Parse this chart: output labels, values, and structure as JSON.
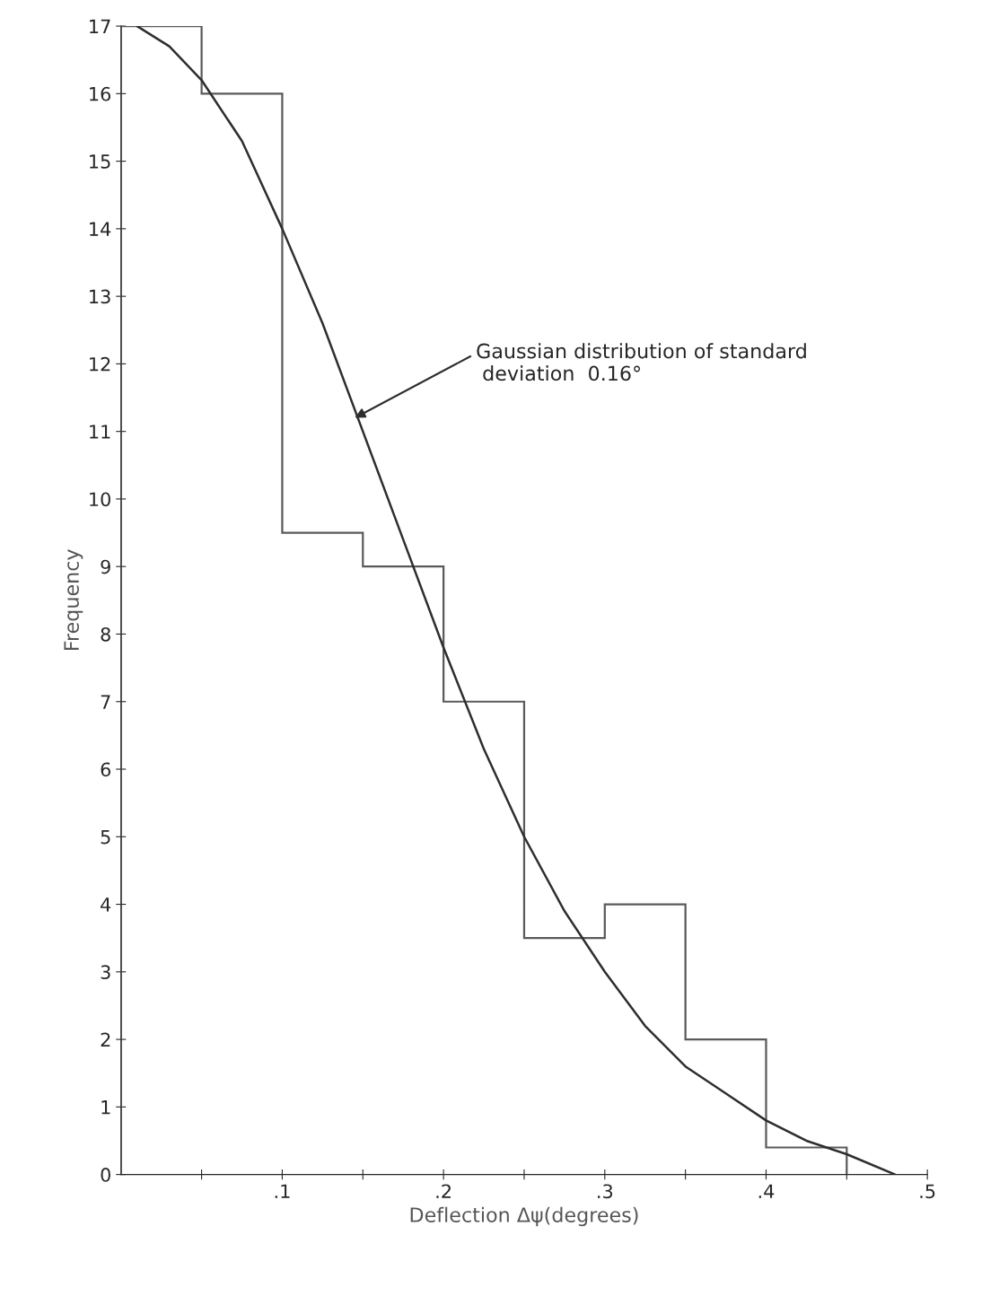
{
  "chart_data": {
    "type": "histogram",
    "xlabel": "Deflection Δψ(degrees)",
    "ylabel": "Frequency",
    "bins": [
      0,
      0.05,
      0.1,
      0.15,
      0.2,
      0.25,
      0.3,
      0.35,
      0.4,
      0.45
    ],
    "values": [
      17,
      16,
      9.5,
      9,
      7,
      3.5,
      4,
      2,
      0.4
    ],
    "color": "#5a5a5a",
    "series": [
      {
        "type": "line",
        "color": "#2e2e2e",
        "x": [
          0.01,
          0.03,
          0.05,
          0.075,
          0.1,
          0.125,
          0.15,
          0.175,
          0.2,
          0.225,
          0.25,
          0.275,
          0.3,
          0.325,
          0.35,
          0.375,
          0.4,
          0.425,
          0.45,
          0.48
        ],
        "values": [
          17.0,
          16.7,
          16.2,
          15.3,
          14.0,
          12.6,
          11.0,
          9.4,
          7.8,
          6.3,
          5.0,
          3.9,
          3.0,
          2.2,
          1.6,
          1.2,
          0.8,
          0.5,
          0.3,
          0
        ]
      }
    ],
    "annotations": [
      {
        "text": "Gaussian distribution of standard\n deviation  0.16°",
        "x": 0.145,
        "y": 11.2
      }
    ],
    "xlim": [
      0,
      0.5
    ],
    "ylim": [
      0,
      17
    ],
    "xticks": [
      {
        "value": 0.05,
        "label": null
      },
      {
        "value": 0.1,
        "label": ".1"
      },
      {
        "value": 0.15,
        "label": null
      },
      {
        "value": 0.2,
        "label": ".2"
      },
      {
        "value": 0.25,
        "label": null
      },
      {
        "value": 0.3,
        "label": ".3"
      },
      {
        "value": 0.35,
        "label": null
      },
      {
        "value": 0.4,
        "label": ".4"
      },
      {
        "value": 0.45,
        "label": null
      },
      {
        "value": 0.5,
        "label": ".5"
      }
    ],
    "yticks": [
      0,
      1,
      2,
      3,
      4,
      5,
      6,
      7,
      8,
      9,
      10,
      11,
      12,
      13,
      14,
      15,
      16,
      17
    ],
    "grid": false
  }
}
